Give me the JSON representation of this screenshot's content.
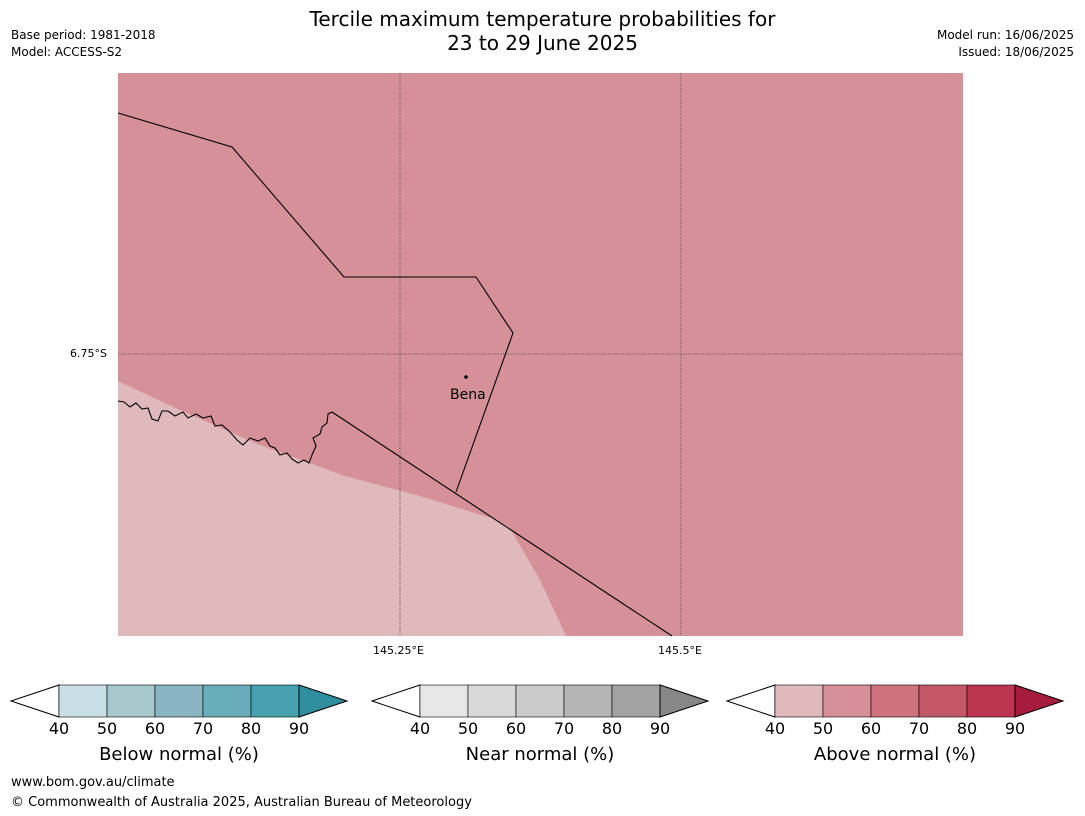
{
  "title_line1": "Tercile maximum temperature probabilities for",
  "title_line2": "23 to 29 June 2025",
  "meta_left": {
    "base_period": "Base period: 1981-2018",
    "model": "Model: ACCESS-S2"
  },
  "meta_right": {
    "model_run": "Model run: 16/06/2025",
    "issued": "Issued: 18/06/2025"
  },
  "axes": {
    "lat_label": "6.75°S",
    "lon_label_1": "145.25°E",
    "lon_label_2": "145.5°E"
  },
  "place_label": "Bena",
  "map_colors": {
    "above_50_60": "#d69098",
    "above_40_50": "#e0b9bd"
  },
  "colorbars": [
    {
      "label": "Below normal (%)",
      "ticks": [
        "40",
        "50",
        "60",
        "70",
        "80",
        "90"
      ],
      "colors": [
        "#c8e0e5",
        "#a6c7cc",
        "#88b5c1",
        "#6aadba",
        "#47a0ae",
        "#2f8f9f"
      ]
    },
    {
      "label": "Near normal (%)",
      "ticks": [
        "40",
        "50",
        "60",
        "70",
        "80",
        "90"
      ],
      "colors": [
        "#e6e6e6",
        "#d9d9d9",
        "#cbcbcb",
        "#b5b5b5",
        "#a2a2a2",
        "#888888"
      ]
    },
    {
      "label": "Above normal (%)",
      "ticks": [
        "40",
        "50",
        "60",
        "70",
        "80",
        "90"
      ],
      "colors": [
        "#e0b9bd",
        "#d69098",
        "#ce737d",
        "#c35867",
        "#bb3550",
        "#a61c3c"
      ]
    }
  ],
  "footer": {
    "url": "www.bom.gov.au/climate",
    "copyright": "© Commonwealth of Australia 2025, Australian Bureau of Meteorology"
  }
}
